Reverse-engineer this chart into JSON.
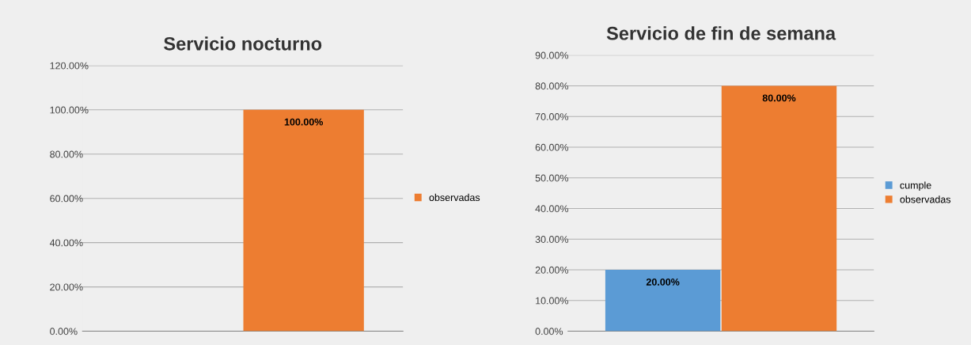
{
  "chart_data": [
    {
      "type": "bar",
      "title": "Servicio nocturno",
      "categories": [
        null
      ],
      "series": [
        {
          "color": "#5b9bd5",
          "values": [
            null
          ]
        },
        {
          "name": "observadas",
          "color": "#ed7d31",
          "values": [
            100
          ],
          "value_labels": [
            "100.00%"
          ]
        }
      ],
      "ylim": [
        0,
        120
      ],
      "yticks": [
        {
          "value": 0,
          "label": "0.00%"
        },
        {
          "value": 20,
          "label": "20.00%"
        },
        {
          "value": 40,
          "label": "40.00%"
        },
        {
          "value": 60,
          "label": "60.00%"
        },
        {
          "value": 80,
          "label": "80.00%"
        },
        {
          "value": 100,
          "label": "100.00%"
        },
        {
          "value": 120,
          "label": "120.00%"
        }
      ],
      "grid": "y",
      "legend": "right"
    },
    {
      "type": "bar",
      "title": "Servicio de fin de semana",
      "categories": [
        null
      ],
      "series": [
        {
          "name": "cumple",
          "color": "#5b9bd5",
          "values": [
            20
          ],
          "value_labels": [
            "20.00%"
          ]
        },
        {
          "name": "observadas",
          "color": "#ed7d31",
          "values": [
            80
          ],
          "value_labels": [
            "80.00%"
          ]
        }
      ],
      "ylim": [
        0,
        90
      ],
      "yticks": [
        {
          "value": 0,
          "label": "0.00%"
        },
        {
          "value": 10,
          "label": "10.00%"
        },
        {
          "value": 20,
          "label": "20.00%"
        },
        {
          "value": 30,
          "label": "30.00%"
        },
        {
          "value": 40,
          "label": "40.00%"
        },
        {
          "value": 50,
          "label": "50.00%"
        },
        {
          "value": 60,
          "label": "60.00%"
        },
        {
          "value": 70,
          "label": "70.00%"
        },
        {
          "value": 80,
          "label": "80.00%"
        },
        {
          "value": 90,
          "label": "90.00%"
        }
      ],
      "grid": "y",
      "legend": "right"
    }
  ]
}
